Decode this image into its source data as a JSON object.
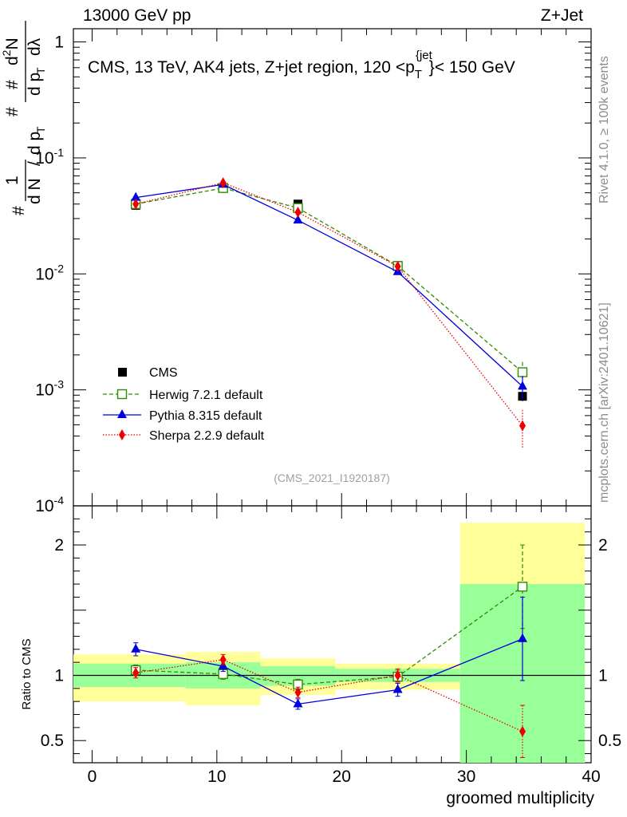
{
  "header": {
    "left": "13000 GeV pp",
    "right": "Z+Jet"
  },
  "main_title": {
    "prefix": "CMS, 13 TeV, AK4 jets, Z+jet region, 120 <p",
    "sub": "T",
    "sup": "{jet",
    "sup_close": "}",
    "suffix": "< 150 GeV"
  },
  "y_title": {
    "hash": "#",
    "one": "1",
    "dN": "d N",
    "slash": "/",
    "dpT": "d p",
    "T": "T",
    "d2N": "d",
    "d2N_exp": "2",
    "d2N_N": "N",
    "dpT2": "d p",
    "dlambda": "dλ"
  },
  "side_labels": {
    "rivet": "Rivet 4.1.0, ≥ 100k events",
    "mcplots": "mcplots.cern.ch [arXiv:2401.10621]"
  },
  "analysis_id": "(CMS_2021_I1920187)",
  "x_axis_label": "groomed multiplicity",
  "ratio_axis_label": "Ratio to CMS",
  "colors": {
    "herwig": "#2e8b00",
    "pythia": "#0000dd",
    "sherpa": "#ee0000",
    "band_outer": "#ffff99",
    "band_inner": "#99ff99"
  },
  "legend": [
    {
      "key": "cms",
      "label": "CMS"
    },
    {
      "key": "herwig",
      "label": "Herwig 7.2.1 default"
    },
    {
      "key": "pythia",
      "label": "Pythia 8.315 default"
    },
    {
      "key": "sherpa",
      "label": "Sherpa 2.2.9 default"
    }
  ],
  "chart_data": {
    "type": "line",
    "x_bins": [
      [
        -1.5,
        7.5
      ],
      [
        7.5,
        13.5
      ],
      [
        13.5,
        19.5
      ],
      [
        19.5,
        29.5
      ],
      [
        29.5,
        39.5
      ]
    ],
    "x": [
      3.5,
      10.5,
      16.5,
      24.5,
      34.5
    ],
    "xlim": [
      -1.5,
      40
    ],
    "x_ticks": [
      0,
      10,
      20,
      30,
      40
    ],
    "ylim": [
      0.0001,
      1.3
    ],
    "y_ticks": [
      {
        "base": "10",
        "exp": "-4",
        "value": 0.0001
      },
      {
        "base": "10",
        "exp": "-3",
        "value": 0.001
      },
      {
        "base": "10",
        "exp": "-2",
        "value": 0.01
      },
      {
        "base": "10",
        "exp": "-1",
        "value": 0.1
      },
      {
        "base": "1",
        "exp": "",
        "value": 1
      }
    ],
    "series": [
      {
        "name": "CMS",
        "key": "cms",
        "values": [
          0.039,
          0.055,
          0.04,
          0.0118,
          0.00088
        ],
        "errors": [
          0.0015,
          0.0015,
          0.0015,
          0.0007,
          8e-05
        ]
      },
      {
        "name": "Herwig 7.2.1 default",
        "key": "herwig",
        "values": [
          0.04,
          0.055,
          0.037,
          0.0117,
          0.00142
        ],
        "errors": [
          0.0008,
          0.0009,
          0.0008,
          0.0004,
          0.00032
        ]
      },
      {
        "name": "Pythia 8.315 default",
        "key": "pythia",
        "values": [
          0.0455,
          0.059,
          0.029,
          0.0104,
          0.00107
        ],
        "errors": [
          0.0008,
          0.0009,
          0.0008,
          0.0004,
          0.00025
        ]
      },
      {
        "name": "Sherpa 2.2.9 default",
        "key": "sherpa",
        "values": [
          0.04,
          0.061,
          0.034,
          0.0116,
          0.00049
        ],
        "errors": [
          0.0008,
          0.0009,
          0.0008,
          0.0004,
          0.00018
        ]
      }
    ],
    "ratio": {
      "ylim": [
        0.33,
        2.3
      ],
      "y_ticks": [
        {
          "label": "0.5",
          "value": 0.5
        },
        {
          "label": "1",
          "value": 1
        },
        {
          "label": "2",
          "value": 2
        }
      ],
      "band_outer": [
        [
          0.8,
          1.16
        ],
        [
          0.77,
          1.18
        ],
        [
          0.85,
          1.13
        ],
        [
          0.89,
          1.09
        ],
        [
          0.33,
          2.17
        ]
      ],
      "band_inner": [
        [
          0.91,
          1.09
        ],
        [
          0.9,
          1.1
        ],
        [
          0.92,
          1.07
        ],
        [
          0.95,
          1.05
        ],
        [
          0.33,
          1.7
        ]
      ],
      "series": [
        {
          "key": "herwig",
          "values": [
            1.04,
            1.01,
            0.93,
            0.99,
            1.68
          ],
          "errors": [
            0.04,
            0.04,
            0.04,
            0.05,
            0.32
          ]
        },
        {
          "key": "pythia",
          "values": [
            1.2,
            1.07,
            0.78,
            0.89,
            1.28
          ],
          "errors": [
            0.05,
            0.04,
            0.04,
            0.05,
            0.32
          ]
        },
        {
          "key": "sherpa",
          "values": [
            1.02,
            1.12,
            0.87,
            1.0,
            0.57
          ],
          "errors": [
            0.04,
            0.04,
            0.04,
            0.05,
            0.2
          ]
        }
      ]
    }
  }
}
